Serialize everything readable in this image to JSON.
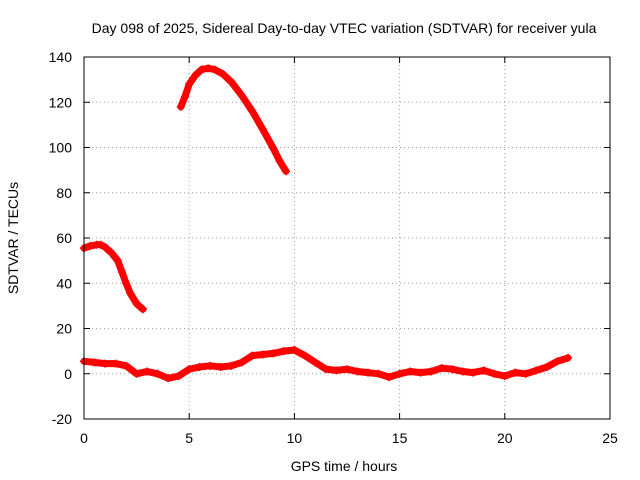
{
  "chart_data": {
    "type": "line",
    "title": "Day 098 of 2025, Sidereal Day-to-day VTEC variation (SDTVAR) for receiver yula",
    "xlabel": "GPS time / hours",
    "ylabel": "SDTVAR / TECUs",
    "xlim": [
      0,
      25
    ],
    "ylim": [
      -20,
      140
    ],
    "xticks": [
      0,
      5,
      10,
      15,
      20,
      25
    ],
    "yticks": [
      -20,
      0,
      20,
      40,
      60,
      80,
      100,
      120,
      140
    ],
    "grid": true,
    "legend": "none",
    "series_color": "#ff0000",
    "series": [
      {
        "name": "segment-1",
        "x": [
          0.0,
          0.3,
          0.6,
          0.8,
          1.0,
          1.3,
          1.6,
          1.8,
          2.0,
          2.2,
          2.5,
          2.8
        ],
        "y": [
          55.5,
          56.5,
          57.0,
          57.0,
          56.0,
          53.5,
          50.0,
          45.0,
          40.0,
          35.5,
          31.0,
          28.5
        ]
      },
      {
        "name": "segment-2",
        "x": [
          4.6,
          4.8,
          5.0,
          5.3,
          5.6,
          5.9,
          6.2,
          6.6,
          7.0,
          7.5,
          8.0,
          8.5,
          9.0,
          9.3,
          9.6
        ],
        "y": [
          118.0,
          122.5,
          128.0,
          132.0,
          134.5,
          135.0,
          134.5,
          132.5,
          129.0,
          123.0,
          116.0,
          108.0,
          99.5,
          94.0,
          89.5
        ]
      },
      {
        "name": "segment-3",
        "x": [
          0.0,
          0.5,
          1.0,
          1.5,
          2.0,
          2.5,
          3.0,
          3.5,
          4.0,
          4.5,
          5.0,
          5.5,
          6.0,
          6.5,
          7.0,
          7.5,
          8.0,
          8.5,
          9.0,
          9.5,
          10.0,
          10.5,
          11.0,
          11.5,
          12.0,
          12.5,
          13.0,
          13.5,
          14.0,
          14.5,
          15.0,
          15.5,
          16.0,
          16.5,
          17.0,
          17.5,
          18.0,
          18.5,
          19.0,
          19.5,
          20.0,
          20.5,
          21.0,
          21.5,
          22.0,
          22.5,
          23.0
        ],
        "y": [
          5.5,
          5.0,
          4.5,
          4.5,
          3.5,
          0.0,
          1.0,
          0.0,
          -2.0,
          -1.0,
          2.0,
          3.0,
          3.5,
          3.0,
          3.5,
          5.0,
          8.0,
          8.5,
          9.0,
          10.0,
          10.5,
          8.0,
          5.0,
          2.0,
          1.5,
          2.0,
          1.0,
          0.5,
          0.0,
          -1.5,
          0.0,
          1.0,
          0.5,
          1.0,
          2.5,
          2.0,
          1.0,
          0.5,
          1.5,
          0.0,
          -1.0,
          0.5,
          0.0,
          1.5,
          3.0,
          5.5,
          7.0
        ]
      }
    ]
  }
}
